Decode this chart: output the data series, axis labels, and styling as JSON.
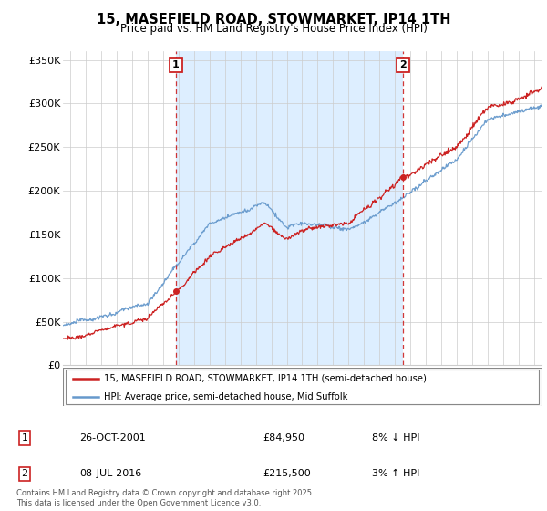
{
  "title": "15, MASEFIELD ROAD, STOWMARKET, IP14 1TH",
  "subtitle": "Price paid vs. HM Land Registry's House Price Index (HPI)",
  "ylim": [
    0,
    360000
  ],
  "yticks": [
    0,
    50000,
    100000,
    150000,
    200000,
    250000,
    300000,
    350000
  ],
  "ytick_labels": [
    "£0",
    "£50K",
    "£100K",
    "£150K",
    "£200K",
    "£250K",
    "£300K",
    "£350K"
  ],
  "hpi_color": "#6699cc",
  "price_color": "#cc2222",
  "shade_color": "#ddeeff",
  "sale1_date": 2001.82,
  "sale1_price": 84950,
  "sale2_date": 2016.52,
  "sale2_price": 215500,
  "legend1_label": "15, MASEFIELD ROAD, STOWMARKET, IP14 1TH (semi-detached house)",
  "legend2_label": "HPI: Average price, semi-detached house, Mid Suffolk",
  "footer": "Contains HM Land Registry data © Crown copyright and database right 2025.\nThis data is licensed under the Open Government Licence v3.0.",
  "xmin": 1994.5,
  "xmax": 2025.5
}
